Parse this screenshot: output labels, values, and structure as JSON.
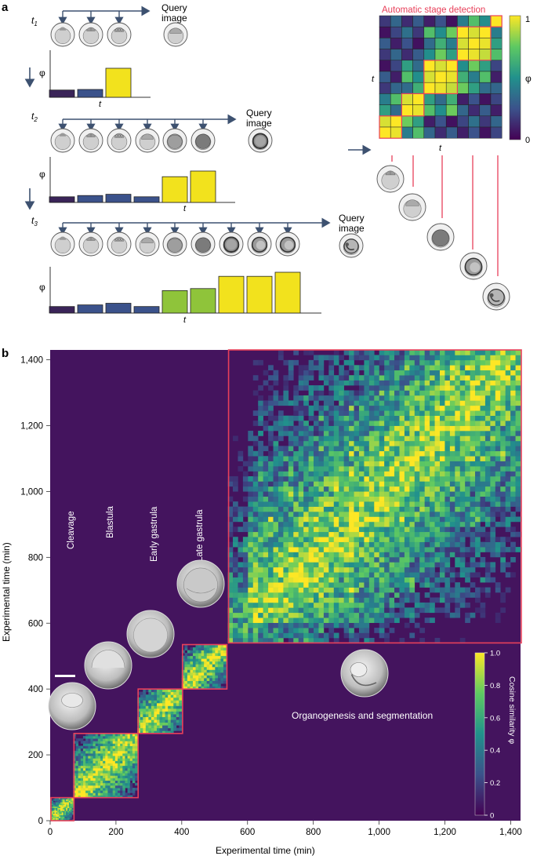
{
  "panel_a": {
    "label": "a",
    "t1_label": "t",
    "t1_sub": "1",
    "t2_label": "t",
    "t2_sub": "2",
    "t3_label": "t",
    "t3_sub": "3",
    "query_line1": "Query",
    "query_line2": "image",
    "phi": "φ",
    "t_axis": "t",
    "auto_title": "Automatic stage detection",
    "auto_xlabel": "t",
    "auto_ylabel": "t",
    "colorbar_top": "1",
    "colorbar_bottom": "0",
    "colorbar_label": "φ",
    "bars_t1": [
      0.25,
      0.27,
      1.0
    ],
    "bars_t2": [
      0.18,
      0.22,
      0.26,
      0.18,
      0.82,
      1.0
    ],
    "bars_t3": [
      0.16,
      0.2,
      0.24,
      0.16,
      0.55,
      0.6,
      0.9,
      0.9,
      1.0
    ],
    "colors": {
      "dark": "#3b1f5a",
      "blue": "#3b528b",
      "green": "#7ac43a",
      "yellow": "#f2e21d",
      "red": "#e8405a",
      "arrow": "#3d5170"
    }
  },
  "panel_b": {
    "label": "b",
    "xlabel": "Experimental time (min)",
    "ylabel": "Experimental time (min)",
    "x_ticks": [
      "0",
      "200",
      "400",
      "600",
      "800",
      "1,000",
      "1,200",
      "1,400"
    ],
    "y_ticks": [
      "0",
      "200",
      "400",
      "600",
      "800",
      "1,000",
      "1,200",
      "1,400"
    ],
    "stages": [
      "Cleavage",
      "Blastula",
      "Early gastrula",
      "Late gastrula"
    ],
    "organogenesis": "Organogenesis and segmentation",
    "colorbar_label": "Cosine similarity φ",
    "colorbar_ticks": [
      "0",
      "0.2",
      "0.4",
      "0.6",
      "0.8",
      "1.0"
    ]
  },
  "chart_data": {
    "type": "heatmap",
    "title": "",
    "xlabel": "Experimental time (min)",
    "ylabel": "Experimental time (min)",
    "xlim": [
      0,
      1430
    ],
    "ylim": [
      0,
      1430
    ],
    "colorbar": {
      "label": "Cosine similarity φ",
      "range": [
        0,
        1.0
      ]
    },
    "stage_blocks": [
      {
        "name": "",
        "start": 0,
        "end": 70
      },
      {
        "name": "Cleavage",
        "start": 70,
        "end": 265
      },
      {
        "name": "Blastula",
        "start": 265,
        "end": 400
      },
      {
        "name": "Early gastrula",
        "start": 400,
        "end": 535
      },
      {
        "name": "Late gastrula",
        "start": 535,
        "end": 540
      },
      {
        "name": "Organogenesis and segmentation",
        "start": 540,
        "end": 1430
      }
    ]
  }
}
